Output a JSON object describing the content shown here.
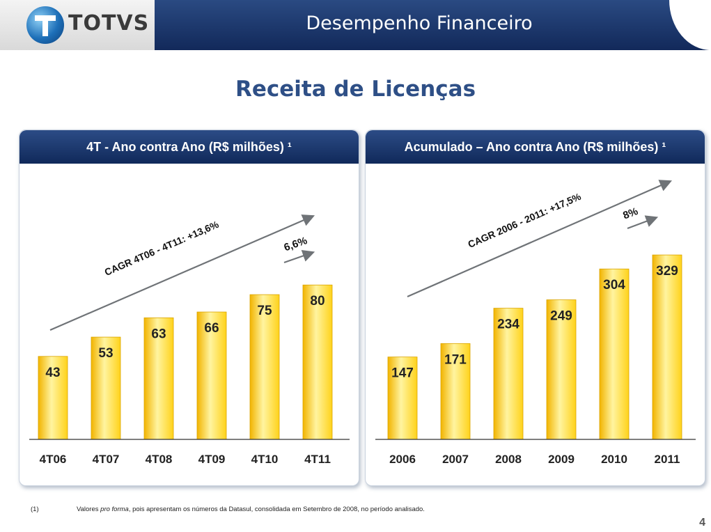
{
  "header": {
    "logo_text": "TOTVS",
    "page_title": "Desempenho Financeiro"
  },
  "section_title": "Receita de Licenças",
  "colors": {
    "bar_top": "#fff4a0",
    "bar_mid": "#ffd21a",
    "bar_bottom": "#f2b400",
    "header_blue": "#1d3b72",
    "title_blue": "#2e4f86",
    "arrow_gray": "#6f7377"
  },
  "chart_data": [
    {
      "type": "bar",
      "title": "4T - Ano contra Ano (R$ milhões) ¹",
      "categories": [
        "4T06",
        "4T07",
        "4T08",
        "4T09",
        "4T10",
        "4T11"
      ],
      "values": [
        43,
        53,
        63,
        66,
        75,
        80
      ],
      "value_labels": [
        "43",
        "53",
        "63",
        "66",
        "75",
        "80"
      ],
      "ylim": [
        0,
        95
      ],
      "grid": false,
      "annotations": {
        "cagr": "CAGR 4T06 - 4T11: +13,6%",
        "growth": "6,6%"
      }
    },
    {
      "type": "bar",
      "title": "Acumulado – Ano contra Ano (R$ milhões) ¹",
      "categories": [
        "2006",
        "2007",
        "2008",
        "2009",
        "2010",
        "2011"
      ],
      "values": [
        147,
        171,
        234,
        249,
        304,
        329
      ],
      "value_labels": [
        "147",
        "171",
        "234",
        "249",
        "304",
        "329"
      ],
      "ylim": [
        0,
        390
      ],
      "grid": false,
      "annotations": {
        "cagr": "CAGR 2006 - 2011: +17,5%",
        "growth": "8%"
      }
    }
  ],
  "footnote": {
    "marker": "(1)",
    "text_before": "Valores ",
    "text_italic": "pro forma",
    "text_after": ", pois apresentam os números da Datasul, consolidada em Setembro de 2008, no período analisado."
  },
  "page_number": "4"
}
